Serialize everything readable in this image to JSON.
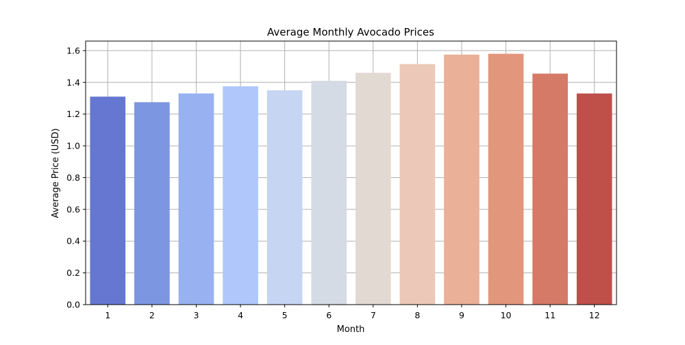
{
  "chart_data": {
    "type": "bar",
    "title": "Average Monthly Avocado Prices",
    "xlabel": "Month",
    "ylabel": "Average Price (USD)",
    "categories": [
      "1",
      "2",
      "3",
      "4",
      "5",
      "6",
      "7",
      "8",
      "9",
      "10",
      "11",
      "12"
    ],
    "values": [
      1.31,
      1.275,
      1.33,
      1.375,
      1.35,
      1.41,
      1.46,
      1.515,
      1.575,
      1.58,
      1.455,
      1.33
    ],
    "ylim": [
      0,
      1.66
    ],
    "yticks": [
      0.0,
      0.2,
      0.4,
      0.6,
      0.8,
      1.0,
      1.2,
      1.4,
      1.6
    ],
    "ytick_labels": [
      "0.0",
      "0.2",
      "0.4",
      "0.6",
      "0.8",
      "1.0",
      "1.2",
      "1.4",
      "1.6"
    ],
    "grid": true,
    "palette": "coolwarm",
    "colors": [
      "#6577d0",
      "#7d96e2",
      "#97b1f1",
      "#afc7fb",
      "#c5d5f2",
      "#d5dbe5",
      "#e3d9d3",
      "#ecc8b8",
      "#eab098",
      "#e2967b",
      "#d47a66",
      "#be5049"
    ]
  }
}
